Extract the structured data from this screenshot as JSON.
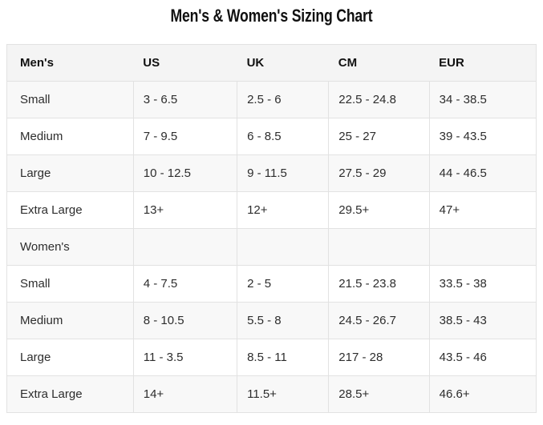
{
  "title": "Men's & Women's Sizing Chart",
  "chart_data": {
    "type": "table",
    "title": "Men's & Women's Sizing Chart",
    "columns": [
      "Men's",
      "US",
      "UK",
      "CM",
      "EUR"
    ],
    "rows": [
      [
        "Small",
        "3 - 6.5",
        "2.5 - 6",
        "22.5 - 24.8",
        "34 - 38.5"
      ],
      [
        "Medium",
        "7 - 9.5",
        "6 - 8.5",
        "25 - 27",
        "39 - 43.5"
      ],
      [
        "Large",
        "10 - 12.5",
        "9 - 11.5",
        "27.5 - 29",
        "44 - 46.5"
      ],
      [
        "Extra Large",
        "13+",
        "12+",
        "29.5+",
        "47+"
      ],
      [
        "Women's",
        "",
        "",
        "",
        ""
      ],
      [
        "Small",
        "4 - 7.5",
        "2 - 5",
        "21.5 - 23.8",
        "33.5 - 38"
      ],
      [
        "Medium",
        "8 - 10.5",
        "5.5 - 8",
        "24.5 - 26.7",
        "38.5 - 43"
      ],
      [
        "Large",
        "11 - 3.5",
        "8.5 - 11",
        "217 - 28",
        "43.5 - 46"
      ],
      [
        "Extra Large",
        "14+",
        "11.5+",
        "28.5+",
        "46.6+"
      ]
    ],
    "layout": {
      "grid": true,
      "striped_rows": "odd",
      "header_vertical_dividers": false
    }
  },
  "colors": {
    "title_text": "#101010",
    "header_bg": "#f4f4f4",
    "header_text": "#111111",
    "stripe_bg": "#f8f8f8",
    "row_bg": "#ffffff",
    "cell_text": "#2d2d2d",
    "border": "#e2e2e2"
  }
}
